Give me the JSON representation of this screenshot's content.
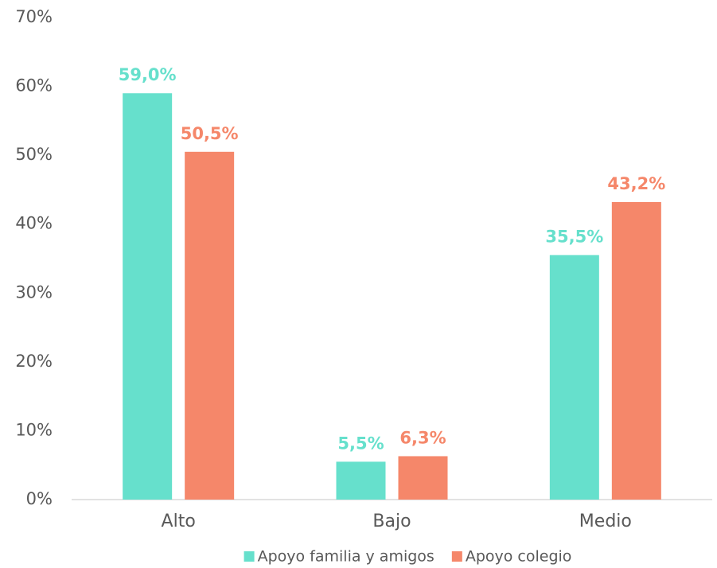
{
  "chart_data": {
    "type": "bar",
    "categories": [
      "Alto",
      "Bajo",
      "Medio"
    ],
    "series": [
      {
        "name": "Apoyo familia y amigos",
        "color": "#66e0cc",
        "values": [
          59.0,
          5.5,
          35.5
        ],
        "value_labels": [
          "59,0%",
          "5,5%",
          "35,5%"
        ]
      },
      {
        "name": "Apoyo colegio",
        "color": "#f5876a",
        "values": [
          50.5,
          6.3,
          43.2
        ],
        "value_labels": [
          "50,5%",
          "6,3%",
          "43,2%"
        ]
      }
    ],
    "ylim": [
      0,
      70
    ],
    "yticks": [
      {
        "value": 0,
        "label": "0%"
      },
      {
        "value": 10,
        "label": "10%"
      },
      {
        "value": 20,
        "label": "20%"
      },
      {
        "value": 30,
        "label": "30%"
      },
      {
        "value": 40,
        "label": "40%"
      },
      {
        "value": 50,
        "label": "50%"
      },
      {
        "value": 60,
        "label": "60%"
      },
      {
        "value": 70,
        "label": "70%"
      }
    ],
    "grid": false,
    "legend": "bottom"
  }
}
